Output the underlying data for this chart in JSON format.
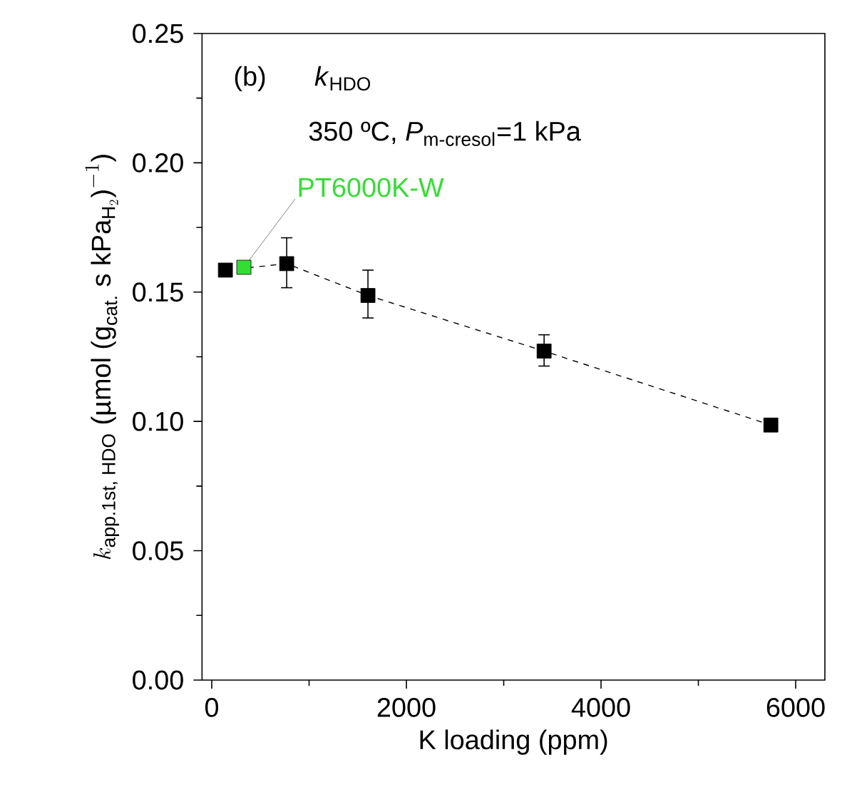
{
  "chart_data": {
    "type": "scatter",
    "xlabel": "K loading (ppm)",
    "ylabel": "k_{\\text{app.1st, HDO}}\\text{ (µmol (g}_{\\text{cat.}}\\text{ s kPa}_{\\text{H}_{2}}\\text{)}^{-1}\\text{)}",
    "xlim": [
      -100,
      6300
    ],
    "ylim": [
      0,
      0.25
    ],
    "xticks": [
      0,
      2000,
      4000,
      6000
    ],
    "yticks": [
      {
        "value": 0,
        "label": "0.00"
      },
      {
        "value": 0.05,
        "label": "0.05"
      },
      {
        "value": 0.1,
        "label": "0.10"
      },
      {
        "value": 0.15,
        "label": "0.15"
      },
      {
        "value": 0.2,
        "label": "0.20"
      },
      {
        "value": 0.25,
        "label": "0.25"
      }
    ],
    "series": [
      {
        "type": "line",
        "marker": "square",
        "line_style": "dashed",
        "color": "#000000",
        "x": [
          140,
          770,
          1605,
          3415,
          5745
        ],
        "values": [
          0.1585,
          0.161,
          0.1487,
          0.1272,
          0.0986
        ],
        "errors": [
          null,
          [
            0.1517,
            0.171
          ],
          [
            0.14,
            0.1585
          ],
          [
            0.1214,
            0.1335
          ],
          null
        ]
      },
      {
        "marker": "square",
        "color": "#33dd33",
        "x": [
          330
        ],
        "values": [
          0.1596
        ]
      }
    ],
    "annotations": [
      "(b)",
      "*k*$_{HDO}$",
      "350 ºC, *P*$_{m-cresol}$=1 kPa",
      {
        "text": "PT6000K-W",
        "x": 330,
        "y": 0.1596
      }
    ]
  }
}
